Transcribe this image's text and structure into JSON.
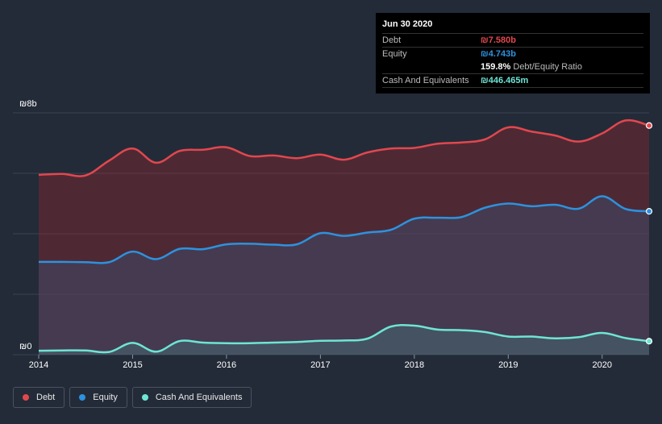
{
  "tooltip": {
    "date": "Jun 30 2020",
    "debt_label": "Debt",
    "debt_value": "₪7.580b",
    "equity_label": "Equity",
    "equity_value": "₪4.743b",
    "ratio_value": "159.8%",
    "ratio_label": "Debt/Equity Ratio",
    "cash_label": "Cash And Equivalents",
    "cash_value": "₪446.465m"
  },
  "legend": {
    "debt": "Debt",
    "equity": "Equity",
    "cash": "Cash And Equivalents"
  },
  "colors": {
    "debt": "#e2474e",
    "equity": "#2d92de",
    "cash": "#6ee5d4",
    "background": "#232b38"
  },
  "chart_data": {
    "type": "area",
    "title": "",
    "xlabel": "",
    "ylabel": "",
    "y_top_label": "₪8b",
    "y_bottom_label": "₪0",
    "ylim": [
      0,
      8
    ],
    "xlim": [
      2014.0,
      2020.5
    ],
    "x_ticks": [
      2014,
      2015,
      2016,
      2017,
      2018,
      2019,
      2020
    ],
    "x_tick_labels": [
      "2014",
      "2015",
      "2016",
      "2017",
      "2018",
      "2019",
      "2020"
    ],
    "series": [
      {
        "name": "Debt",
        "key": "debt",
        "x": [
          2014.0,
          2014.25,
          2014.5,
          2014.75,
          2015.0,
          2015.25,
          2015.5,
          2015.75,
          2016.0,
          2016.25,
          2016.5,
          2016.75,
          2017.0,
          2017.25,
          2017.5,
          2017.75,
          2018.0,
          2018.25,
          2018.5,
          2018.75,
          2019.0,
          2019.25,
          2019.5,
          2019.75,
          2020.0,
          2020.25,
          2020.5
        ],
        "values": [
          5.95,
          5.98,
          5.93,
          6.42,
          6.82,
          6.35,
          6.74,
          6.78,
          6.86,
          6.57,
          6.59,
          6.5,
          6.62,
          6.45,
          6.69,
          6.82,
          6.84,
          6.98,
          7.02,
          7.12,
          7.52,
          7.38,
          7.25,
          7.05,
          7.32,
          7.75,
          7.58
        ]
      },
      {
        "name": "Equity",
        "key": "equity",
        "x": [
          2014.0,
          2014.25,
          2014.5,
          2014.75,
          2015.0,
          2015.25,
          2015.5,
          2015.75,
          2016.0,
          2016.25,
          2016.5,
          2016.75,
          2017.0,
          2017.25,
          2017.5,
          2017.75,
          2018.0,
          2018.25,
          2018.5,
          2018.75,
          2019.0,
          2019.25,
          2019.5,
          2019.75,
          2020.0,
          2020.25,
          2020.5
        ],
        "values": [
          3.07,
          3.07,
          3.06,
          3.06,
          3.41,
          3.16,
          3.5,
          3.49,
          3.65,
          3.67,
          3.64,
          3.65,
          4.02,
          3.93,
          4.04,
          4.13,
          4.5,
          4.53,
          4.55,
          4.86,
          5.0,
          4.91,
          4.96,
          4.83,
          5.24,
          4.82,
          4.743
        ]
      },
      {
        "name": "Cash And Equivalents",
        "key": "cash",
        "x": [
          2014.0,
          2014.25,
          2014.5,
          2014.75,
          2015.0,
          2015.25,
          2015.5,
          2015.75,
          2016.0,
          2016.25,
          2016.5,
          2016.75,
          2017.0,
          2017.25,
          2017.5,
          2017.75,
          2018.0,
          2018.25,
          2018.5,
          2018.75,
          2019.0,
          2019.25,
          2019.5,
          2019.75,
          2020.0,
          2020.25,
          2020.5
        ],
        "values": [
          0.13,
          0.14,
          0.14,
          0.09,
          0.39,
          0.1,
          0.45,
          0.4,
          0.38,
          0.38,
          0.4,
          0.42,
          0.46,
          0.47,
          0.53,
          0.93,
          0.96,
          0.83,
          0.81,
          0.75,
          0.6,
          0.6,
          0.54,
          0.58,
          0.72,
          0.55,
          0.446
        ]
      }
    ]
  }
}
